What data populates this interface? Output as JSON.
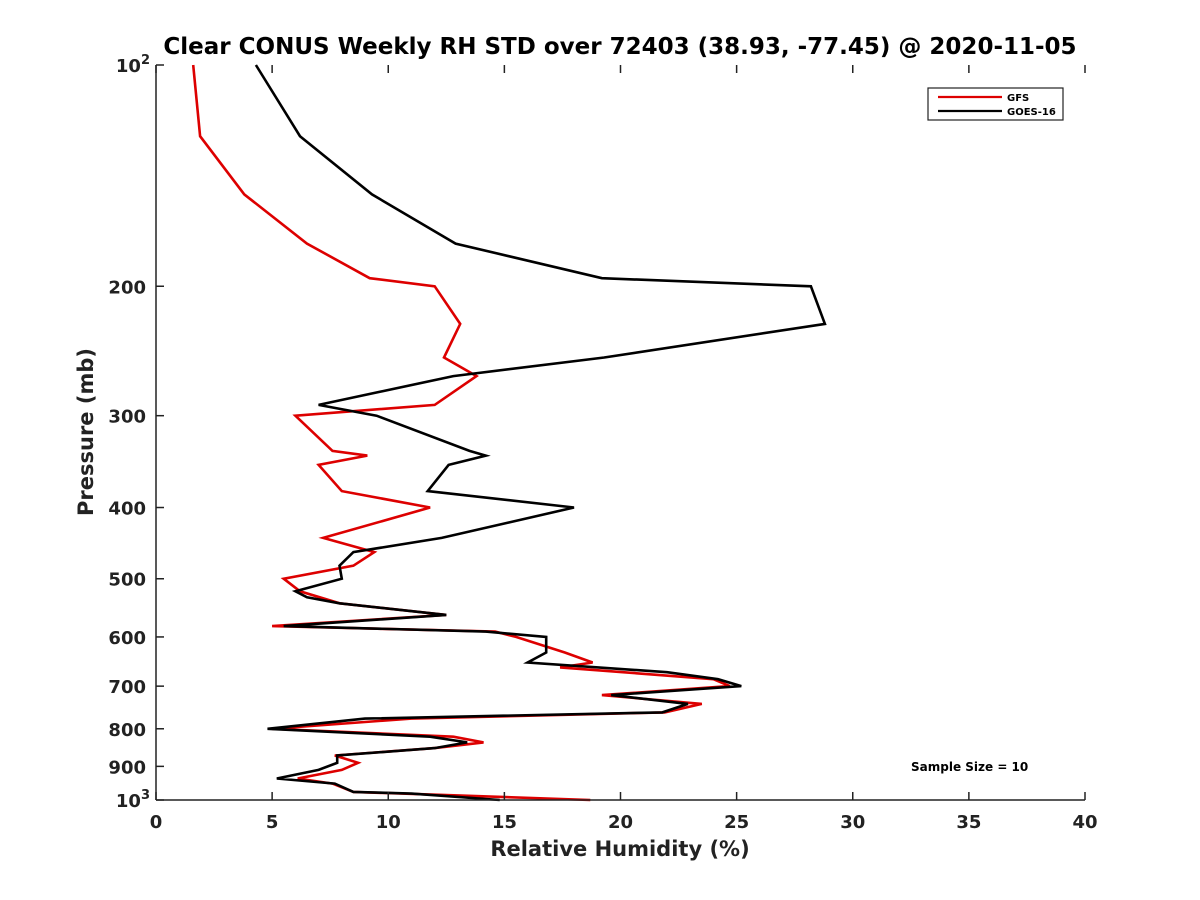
{
  "chart_data": {
    "type": "line",
    "title": "Clear CONUS Weekly RH STD over 72403 (38.93, -77.45) @ 2020-11-05",
    "xlabel": "Relative Humidity (%)",
    "ylabel": "Pressure (mb)",
    "xlim": [
      0,
      40
    ],
    "ylim": [
      100,
      1000
    ],
    "yscale": "log",
    "y_reversed": true,
    "x_ticks": [
      "0",
      "5",
      "10",
      "15",
      "20",
      "25",
      "30",
      "35",
      "40"
    ],
    "y_ticks": [
      {
        "value": 100,
        "base": "10",
        "exp": "2"
      },
      {
        "value": 200,
        "label": "200"
      },
      {
        "value": 300,
        "label": "300"
      },
      {
        "value": 400,
        "label": "400"
      },
      {
        "value": 500,
        "label": "500"
      },
      {
        "value": 600,
        "label": "600"
      },
      {
        "value": 700,
        "label": "700"
      },
      {
        "value": 800,
        "label": "800"
      },
      {
        "value": 900,
        "label": "900"
      },
      {
        "value": 1000,
        "base": "10",
        "exp": "3"
      }
    ],
    "legend_position": "top-right",
    "grid": false,
    "annotation": "Sample Size = 10",
    "series": [
      {
        "name": "GFS",
        "color": "#dd0000",
        "points": [
          [
            1.6,
            100
          ],
          [
            1.9,
            125
          ],
          [
            3.8,
            150
          ],
          [
            6.5,
            175
          ],
          [
            9.2,
            195
          ],
          [
            12.0,
            200
          ],
          [
            13.1,
            225
          ],
          [
            12.4,
            250
          ],
          [
            13.8,
            265
          ],
          [
            12.0,
            290
          ],
          [
            6.0,
            300
          ],
          [
            7.6,
            335
          ],
          [
            9.1,
            340
          ],
          [
            7.0,
            350
          ],
          [
            8.0,
            380
          ],
          [
            11.8,
            400
          ],
          [
            7.2,
            440
          ],
          [
            9.4,
            460
          ],
          [
            8.5,
            480
          ],
          [
            5.5,
            500
          ],
          [
            6.2,
            520
          ],
          [
            7.9,
            540
          ],
          [
            12.5,
            560
          ],
          [
            5.0,
            580
          ],
          [
            14.6,
            590
          ],
          [
            15.5,
            600
          ],
          [
            17.6,
            630
          ],
          [
            18.8,
            650
          ],
          [
            17.4,
            660
          ],
          [
            20.1,
            670
          ],
          [
            24.0,
            685
          ],
          [
            24.7,
            700
          ],
          [
            19.2,
            720
          ],
          [
            23.5,
            740
          ],
          [
            21.9,
            760
          ],
          [
            11.0,
            775
          ],
          [
            5.0,
            800
          ],
          [
            12.8,
            820
          ],
          [
            14.1,
            835
          ],
          [
            12.0,
            850
          ],
          [
            7.7,
            870
          ],
          [
            8.7,
            890
          ],
          [
            8.0,
            910
          ],
          [
            6.1,
            935
          ],
          [
            7.6,
            950
          ],
          [
            8.5,
            975
          ],
          [
            10.6,
            980
          ],
          [
            18.7,
            1000
          ]
        ]
      },
      {
        "name": "GOES-16",
        "color": "#000000",
        "points": [
          [
            4.3,
            100
          ],
          [
            6.2,
            125
          ],
          [
            9.3,
            150
          ],
          [
            12.9,
            175
          ],
          [
            19.2,
            195
          ],
          [
            28.2,
            200
          ],
          [
            28.8,
            225
          ],
          [
            19.3,
            250
          ],
          [
            12.8,
            265
          ],
          [
            7.0,
            290
          ],
          [
            9.5,
            300
          ],
          [
            13.5,
            335
          ],
          [
            14.2,
            340
          ],
          [
            12.6,
            350
          ],
          [
            11.7,
            380
          ],
          [
            18.0,
            400
          ],
          [
            12.3,
            440
          ],
          [
            8.5,
            460
          ],
          [
            7.9,
            480
          ],
          [
            8.0,
            500
          ],
          [
            6.0,
            520
          ],
          [
            6.5,
            530
          ],
          [
            7.9,
            540
          ],
          [
            12.5,
            560
          ],
          [
            5.5,
            580
          ],
          [
            14.2,
            590
          ],
          [
            16.8,
            600
          ],
          [
            16.8,
            630
          ],
          [
            16.0,
            650
          ],
          [
            22.0,
            670
          ],
          [
            24.2,
            685
          ],
          [
            25.2,
            700
          ],
          [
            19.6,
            720
          ],
          [
            22.9,
            740
          ],
          [
            21.8,
            760
          ],
          [
            9.0,
            775
          ],
          [
            4.8,
            800
          ],
          [
            11.8,
            820
          ],
          [
            13.4,
            835
          ],
          [
            12.0,
            850
          ],
          [
            7.8,
            870
          ],
          [
            7.8,
            890
          ],
          [
            7.0,
            910
          ],
          [
            5.2,
            935
          ],
          [
            7.7,
            950
          ],
          [
            8.5,
            975
          ],
          [
            11.0,
            980
          ],
          [
            14.8,
            1000
          ]
        ]
      }
    ]
  }
}
